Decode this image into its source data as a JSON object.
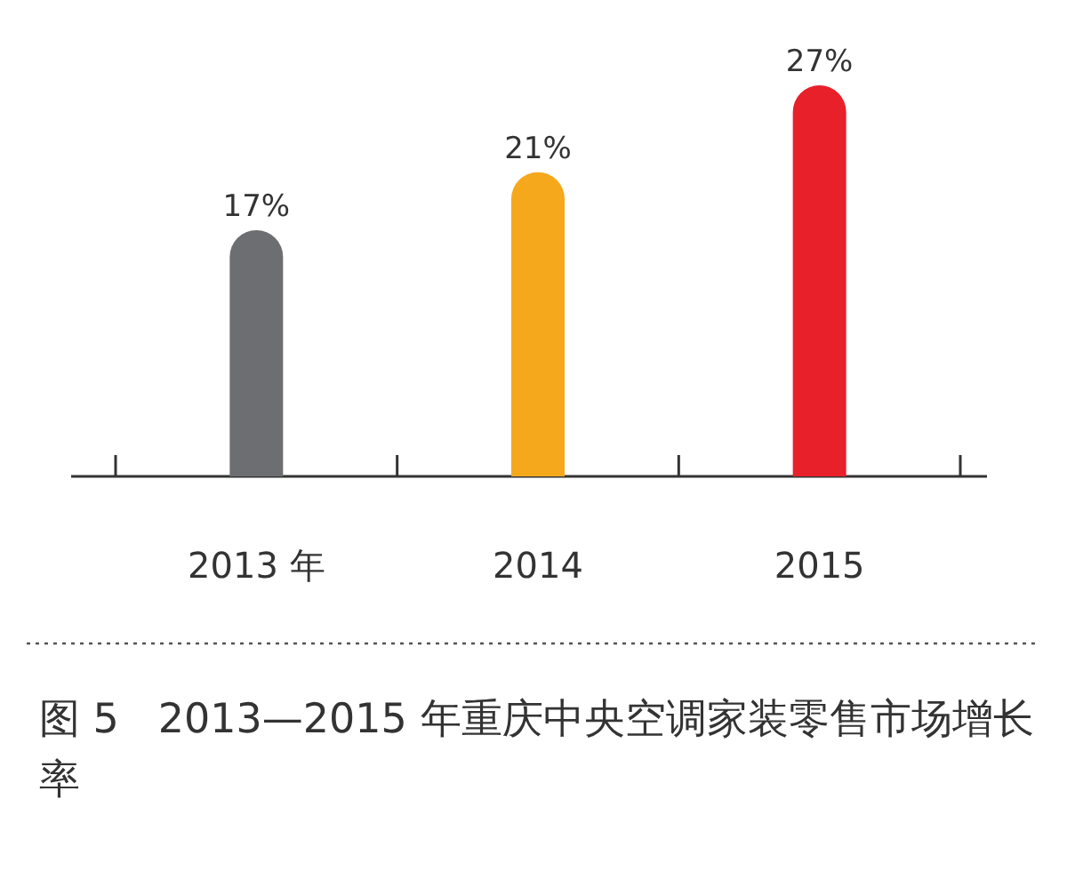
{
  "chart_data": {
    "type": "bar",
    "title": "图 5   2013—2015 年重庆中央空调家装零售市场增长率",
    "categories": [
      "2013 年",
      "2014",
      "2015"
    ],
    "values": [
      17,
      21,
      27
    ],
    "colors": [
      "#6d6e71",
      "#f5a81c",
      "#e8202a"
    ],
    "value_labels": [
      "17%",
      "21%",
      "27%"
    ]
  }
}
